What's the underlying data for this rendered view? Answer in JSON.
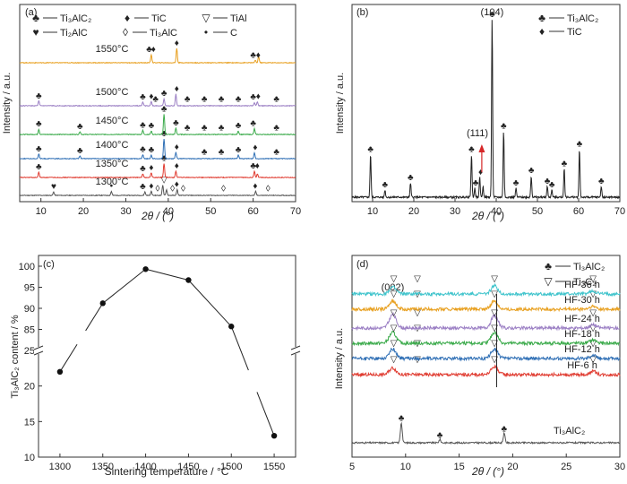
{
  "chart_data": [
    {
      "panel": "(a)",
      "type": "line",
      "xlabel": "2θ / (°)",
      "ylabel": "Intensity / a.u.",
      "xlim": [
        5,
        70
      ],
      "xticks": [
        10,
        20,
        30,
        40,
        50,
        60,
        70
      ],
      "legend": [
        {
          "symbol": "♣",
          "label": "Ti₃AlC₂"
        },
        {
          "symbol": "♦",
          "label": "TiC"
        },
        {
          "symbol": "▽",
          "label": "TiAl"
        },
        {
          "symbol": "♥",
          "label": "Ti₂AlC"
        },
        {
          "symbol": "◊",
          "label": "Ti₃AlC"
        },
        {
          "symbol": "•",
          "label": "C"
        }
      ],
      "series": [
        {
          "name": "1300°C",
          "color": "#555555",
          "peaks": [
            [
              13.0,
              0.3
            ],
            [
              26.6,
              0.35
            ],
            [
              34.5,
              0.3
            ],
            [
              36.0,
              0.35
            ],
            [
              38.7,
              0.9
            ],
            [
              39.6,
              0.5
            ],
            [
              42.1,
              0.5
            ],
            [
              60.6,
              0.35
            ]
          ]
        },
        {
          "name": "1350°C",
          "color": "#e03c31",
          "peaks": [
            [
              9.5,
              0.45
            ],
            [
              34.0,
              0.3
            ],
            [
              36.0,
              0.4
            ],
            [
              39.0,
              1.2
            ],
            [
              41.8,
              0.55
            ],
            [
              60.3,
              0.55
            ],
            [
              61.0,
              0.3
            ]
          ]
        },
        {
          "name": "1400°C",
          "color": "#2f6fb5",
          "peaks": [
            [
              9.5,
              0.4
            ],
            [
              19.2,
              0.25
            ],
            [
              34.0,
              0.35
            ],
            [
              36.0,
              0.3
            ],
            [
              39.0,
              1.7
            ],
            [
              41.8,
              0.55
            ],
            [
              56.5,
              0.3
            ],
            [
              60.3,
              0.5
            ]
          ]
        },
        {
          "name": "1450°C",
          "color": "#3aaa4a",
          "peaks": [
            [
              9.5,
              0.45
            ],
            [
              19.2,
              0.25
            ],
            [
              34.0,
              0.35
            ],
            [
              36.0,
              0.3
            ],
            [
              39.0,
              1.75
            ],
            [
              41.8,
              0.55
            ],
            [
              56.5,
              0.3
            ],
            [
              60.3,
              0.5
            ]
          ]
        },
        {
          "name": "1500°C",
          "color": "#9b7fc4",
          "peaks": [
            [
              9.5,
              0.4
            ],
            [
              34.0,
              0.3
            ],
            [
              36.0,
              0.35
            ],
            [
              39.0,
              0.6
            ],
            [
              41.8,
              1.0
            ],
            [
              60.3,
              0.3
            ],
            [
              61.0,
              0.35
            ]
          ]
        },
        {
          "name": "1550°C",
          "color": "#e8a020",
          "peaks": [
            [
              36.0,
              0.7
            ],
            [
              42.0,
              1.25
            ],
            [
              60.5,
              0.2
            ],
            [
              61.3,
              0.55
            ]
          ]
        }
      ],
      "markers": [
        {
          "series": "1550°C",
          "items": [
            [
              "♣",
              35.5
            ],
            [
              "♦",
              36.5
            ],
            [
              "♦",
              42.0
            ],
            [
              "♣",
              60.0
            ],
            [
              "♦",
              61.2
            ]
          ]
        },
        {
          "series": "1500°C",
          "items": [
            [
              "♣",
              9.5
            ],
            [
              "♣",
              34.0
            ],
            [
              "♦",
              36.0
            ],
            [
              "♣",
              37.0
            ],
            [
              "♣",
              39.0
            ],
            [
              "♦",
              42.0
            ],
            [
              "♣",
              44.5
            ],
            [
              "♣",
              48.5
            ],
            [
              "♣",
              52.5
            ],
            [
              "♣",
              56.5
            ],
            [
              "♣",
              60.0
            ],
            [
              "♦",
              61.2
            ],
            [
              "♣",
              65.5
            ]
          ]
        },
        {
          "series": "1450°C",
          "items": [
            [
              "♣",
              9.5
            ],
            [
              "♣",
              19.2
            ],
            [
              "♣",
              34.0
            ],
            [
              "♣",
              36.0
            ],
            [
              "♣",
              39.0
            ],
            [
              "♣",
              41.8
            ],
            [
              "♣",
              44.5
            ],
            [
              "♣",
              48.5
            ],
            [
              "♣",
              52.5
            ],
            [
              "♣",
              56.5
            ],
            [
              "♣",
              60.0
            ],
            [
              "♣",
              65.5
            ]
          ]
        },
        {
          "series": "1400°C",
          "items": [
            [
              "♣",
              9.5
            ],
            [
              "♣",
              19.2
            ],
            [
              "♣",
              34.0
            ],
            [
              "♣",
              36.0
            ],
            [
              "♣",
              39.0
            ],
            [
              "♦",
              42.0
            ],
            [
              "♣",
              48.5
            ],
            [
              "♣",
              52.5
            ],
            [
              "♣",
              56.5
            ],
            [
              "♦",
              60.5
            ],
            [
              "♣",
              65.5
            ]
          ]
        },
        {
          "series": "1350°C",
          "items": [
            [
              "♣",
              9.5
            ],
            [
              "♣",
              34.0
            ],
            [
              "♦",
              36.0
            ],
            [
              "♣",
              39.0
            ],
            [
              "♦",
              42.0
            ],
            [
              "♣",
              60.0
            ],
            [
              "♦",
              61.0
            ]
          ]
        },
        {
          "series": "1300°C",
          "items": [
            [
              "♥",
              13.0
            ],
            [
              "•",
              26.6
            ],
            [
              "♣",
              34.0
            ],
            [
              "♦",
              36.0
            ],
            [
              "◊",
              37.5
            ],
            [
              "▽",
              39.0
            ],
            [
              "◊",
              41.0
            ],
            [
              "♦",
              42.0
            ],
            [
              "◊",
              43.5
            ],
            [
              "◊",
              53.0
            ],
            [
              "♦",
              60.5
            ],
            [
              "◊",
              63.5
            ]
          ]
        }
      ]
    },
    {
      "panel": "(b)",
      "type": "line",
      "xlabel": "2θ / (°)",
      "ylabel": "Intensity / a.u.",
      "xlim": [
        5,
        70
      ],
      "xticks": [
        10,
        20,
        30,
        40,
        50,
        60,
        70
      ],
      "legend": [
        {
          "symbol": "♣",
          "label": "Ti₃AlC₂"
        },
        {
          "symbol": "♦",
          "label": "TiC"
        }
      ],
      "annotations": [
        "(104)",
        "(111)"
      ],
      "peaks": [
        [
          9.5,
          0.24
        ],
        [
          13.0,
          0.04
        ],
        [
          19.2,
          0.08
        ],
        [
          34.0,
          0.24
        ],
        [
          34.8,
          0.05
        ],
        [
          36.0,
          0.11
        ],
        [
          36.8,
          0.06
        ],
        [
          39.0,
          1.0
        ],
        [
          41.8,
          0.37
        ],
        [
          44.8,
          0.05
        ],
        [
          48.5,
          0.12
        ],
        [
          52.4,
          0.06
        ],
        [
          53.5,
          0.04
        ],
        [
          56.5,
          0.16
        ],
        [
          60.2,
          0.27
        ],
        [
          65.5,
          0.06
        ]
      ],
      "markers": [
        [
          "♣",
          9.5
        ],
        [
          "♣",
          13.0
        ],
        [
          "♣",
          19.2
        ],
        [
          "♣",
          34.0
        ],
        [
          "♣",
          35.0
        ],
        [
          "♦",
          36.2
        ],
        [
          "♣",
          39.0
        ],
        [
          "♣",
          41.8
        ],
        [
          "♣",
          44.8
        ],
        [
          "♣",
          48.5
        ],
        [
          "♣",
          52.4
        ],
        [
          "♣",
          53.5
        ],
        [
          "♣",
          56.5
        ],
        [
          "♣",
          60.2
        ],
        [
          "♣",
          65.5
        ]
      ]
    },
    {
      "panel": "(c)",
      "type": "line",
      "xlabel": "Sintering temperature / °C",
      "ylabel": "Ti₃AlC₂ content / %",
      "xlim": [
        1275,
        1575
      ],
      "xticks": [
        1300,
        1350,
        1400,
        1450,
        1500,
        1550
      ],
      "yticks": [
        10,
        15,
        20,
        25,
        85,
        90,
        95,
        100
      ],
      "x": [
        1300,
        1350,
        1400,
        1450,
        1500,
        1550
      ],
      "values": [
        22.0,
        91.2,
        99.3,
        96.7,
        85.7,
        13.0
      ]
    },
    {
      "panel": "(d)",
      "type": "line",
      "xlabel": "2θ / (°)",
      "ylabel": "Intensity / a.u.",
      "xlim": [
        5,
        30
      ],
      "xticks": [
        5,
        10,
        15,
        20,
        25,
        30
      ],
      "legend": [
        {
          "symbol": "♣",
          "label": "Ti₃AlC₂"
        },
        {
          "symbol": "▽",
          "label": "Ti₃C₂"
        }
      ],
      "annotations": [
        "(002)"
      ],
      "series": [
        {
          "name": "Ti₃AlC₂",
          "color": "#555555",
          "peaks": [
            [
              9.6,
              0.75
            ],
            [
              13.2,
              0.12
            ],
            [
              19.2,
              0.35
            ]
          ]
        },
        {
          "name": "HF-6 h",
          "color": "#e03c31",
          "peaks": [
            [
              8.8,
              0.25
            ],
            [
              18.3,
              0.3
            ],
            [
              27.5,
              0.12
            ]
          ]
        },
        {
          "name": "HF-12 h",
          "color": "#2f6fb5",
          "peaks": [
            [
              8.8,
              0.35
            ],
            [
              18.3,
              0.35
            ],
            [
              27.5,
              0.12
            ]
          ]
        },
        {
          "name": "HF-18 h",
          "color": "#3aaa4a",
          "peaks": [
            [
              8.8,
              0.4
            ],
            [
              18.3,
              0.4
            ],
            [
              27.5,
              0.12
            ]
          ]
        },
        {
          "name": "HF-24 h",
          "color": "#9b7fc4",
          "peaks": [
            [
              8.8,
              0.5
            ],
            [
              18.3,
              0.45
            ],
            [
              27.5,
              0.12
            ]
          ]
        },
        {
          "name": "HF-30 h",
          "color": "#e8a020",
          "peaks": [
            [
              8.8,
              0.3
            ],
            [
              18.3,
              0.3
            ],
            [
              27.5,
              0.1
            ]
          ]
        },
        {
          "name": "HF-36 h",
          "color": "#40c4cc",
          "peaks": [
            [
              8.8,
              0.25
            ],
            [
              18.3,
              0.3
            ],
            [
              27.5,
              0.1
            ]
          ]
        }
      ]
    }
  ]
}
